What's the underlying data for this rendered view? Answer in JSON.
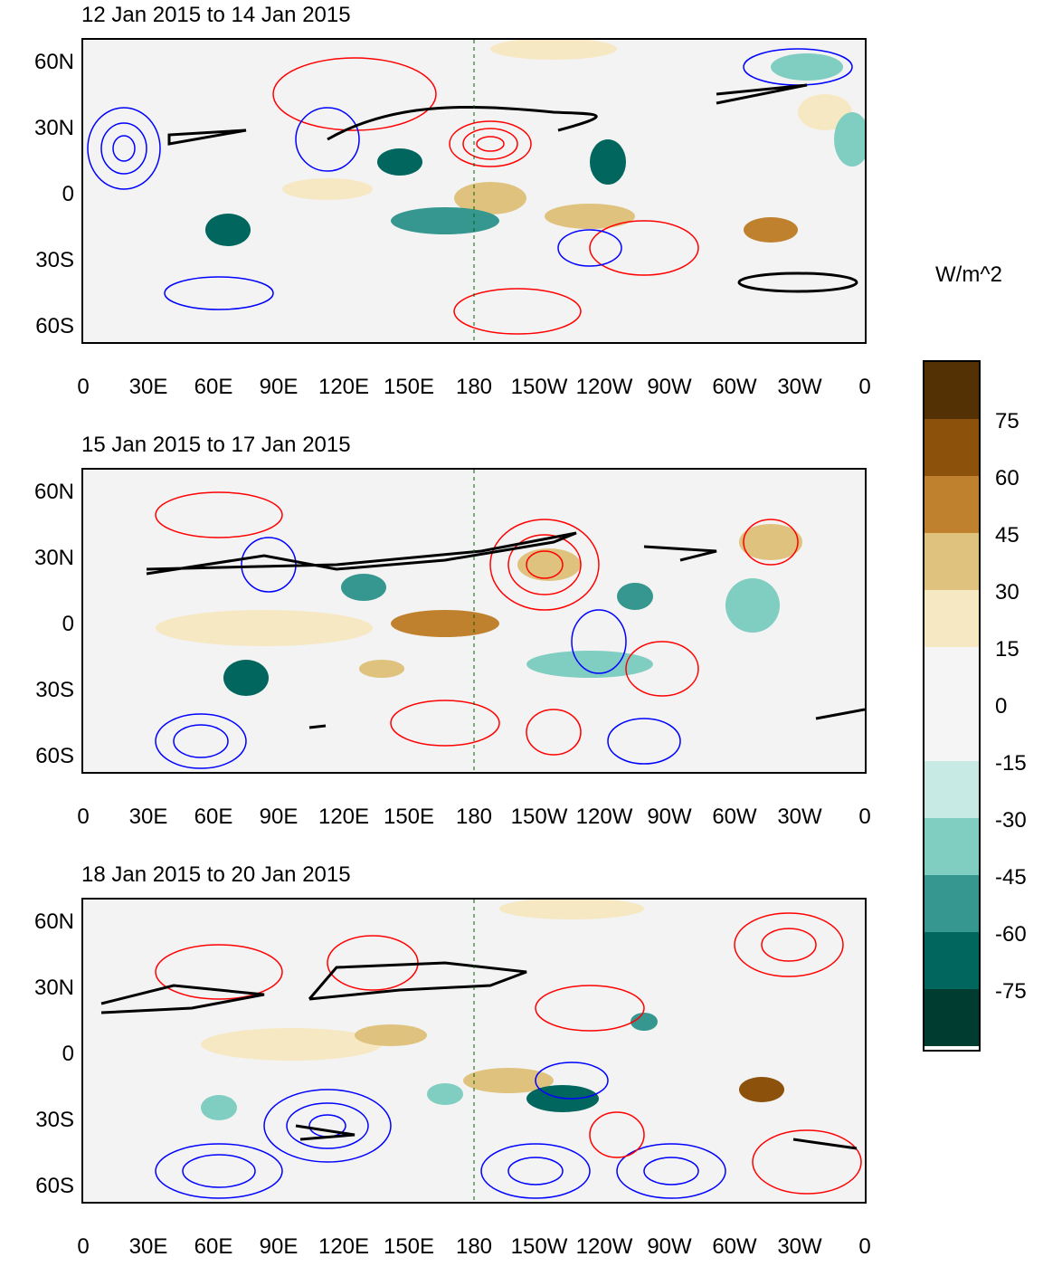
{
  "panels": [
    {
      "title": "12 Jan 2015 to 14 Jan 2015"
    },
    {
      "title": "15 Jan 2015 to 17 Jan 2015"
    },
    {
      "title": "18 Jan 2015 to 20 Jan 2015"
    }
  ],
  "lat_labels": [
    "60N",
    "30N",
    "0",
    "30S",
    "60S"
  ],
  "lon_labels": [
    "0",
    "30E",
    "60E",
    "90E",
    "120E",
    "150E",
    "180",
    "150W",
    "120W",
    "90W",
    "60W",
    "30W",
    "0"
  ],
  "colorbar": {
    "units": "W/m^2",
    "labels": [
      "75",
      "60",
      "45",
      "30",
      "15",
      "0",
      "-15",
      "-30",
      "-45",
      "-60",
      "-75"
    ],
    "colors": [
      "#543005",
      "#8c510a",
      "#bf812d",
      "#dfc27d",
      "#f6e8c3",
      "#f5f5f5",
      "#f5f5f5",
      "#c7eae5",
      "#80cdc1",
      "#35978f",
      "#01665e",
      "#003c30"
    ]
  },
  "colors": {
    "positive_contour": "#ff0000",
    "negative_contour": "#0000ff",
    "zero_contour": "#000000",
    "coastline": "#006400"
  }
}
